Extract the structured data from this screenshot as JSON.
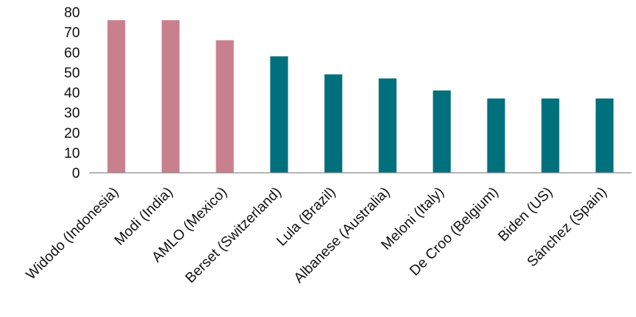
{
  "chart_data": {
    "type": "bar",
    "title": "",
    "xlabel": "",
    "ylabel": "",
    "ylim": [
      0,
      80
    ],
    "yticks": [
      0,
      10,
      20,
      30,
      40,
      50,
      60,
      70,
      80
    ],
    "grid": false,
    "legend": "none",
    "categories": [
      "Widodo (Indonesia)",
      "Modi (India)",
      "AMLO (Mexico)",
      "Berset (Switzerland)",
      "Lula (Brazil)",
      "Albanese (Australia)",
      "Meloni (Italy)",
      "De Croo (Belgium)",
      "Biden (US)",
      "Sánchez (Spain)"
    ],
    "values": [
      76,
      76,
      66,
      58,
      49,
      47,
      41,
      37,
      37,
      37
    ],
    "colors": [
      "#c8808f",
      "#c8808f",
      "#c8808f",
      "#00707c",
      "#00707c",
      "#00707c",
      "#00707c",
      "#00707c",
      "#00707c",
      "#00707c"
    ]
  }
}
